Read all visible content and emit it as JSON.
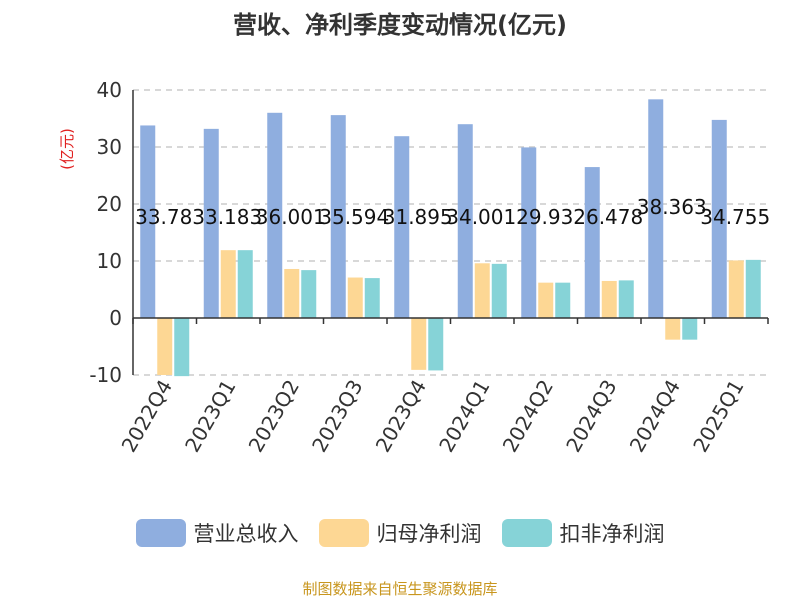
{
  "title": "营收、净利季度变动情况(亿元)",
  "source": "制图数据来自恒生聚源数据库",
  "colors": {
    "revenue": "#8faedf",
    "net_profit": "#fdd794",
    "deducted_profit": "#86d3d7",
    "unit_label": "#e02020",
    "source": "#c8961e"
  },
  "chart_data": {
    "type": "bar",
    "ylabel": "(亿元)",
    "ylim": [
      -10,
      40
    ],
    "yticks": [
      -10,
      0,
      10,
      20,
      30,
      40
    ],
    "grid": true,
    "legend": "bottom",
    "categories": [
      "2022Q4",
      "2023Q1",
      "2023Q2",
      "2023Q3",
      "2023Q4",
      "2024Q1",
      "2024Q2",
      "2024Q3",
      "2024Q4",
      "2025Q1"
    ],
    "series": [
      {
        "name": "营业总收入",
        "values": [
          33.78,
          33.183,
          36.001,
          35.594,
          31.895,
          34.001,
          29.93,
          26.478,
          38.363,
          34.755
        ]
      },
      {
        "name": "归母净利润",
        "values": [
          -10.0,
          11.9,
          8.6,
          7.1,
          -9.1,
          9.6,
          6.2,
          6.5,
          -3.8,
          10.1
        ]
      },
      {
        "name": "扣非净利润",
        "values": [
          -10.2,
          11.9,
          8.4,
          7.0,
          -9.2,
          9.5,
          6.2,
          6.6,
          -3.8,
          10.2
        ]
      }
    ],
    "data_labels": [
      "33.78",
      "33.183",
      "36.001",
      "35.594",
      "31.895",
      "34.001",
      "29.93",
      "26.478",
      "38.363",
      "34.755"
    ]
  }
}
